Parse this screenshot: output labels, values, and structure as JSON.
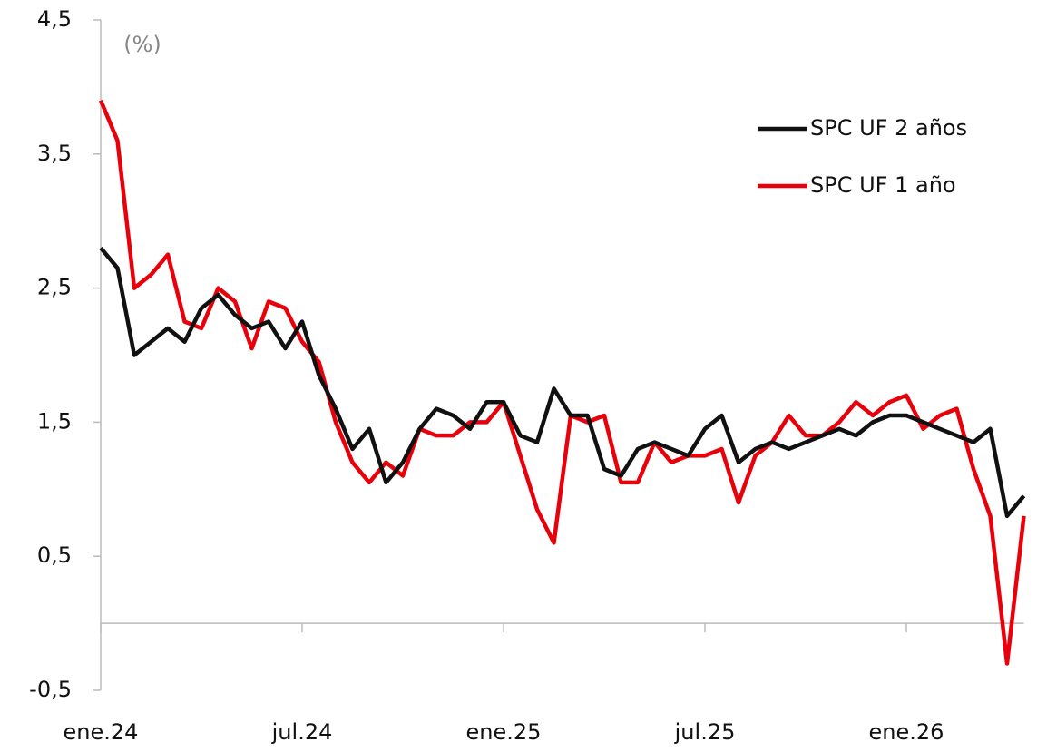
{
  "chart_data": {
    "type": "line",
    "annotation": "(%)",
    "categories": [
      "ene.24",
      null,
      null,
      null,
      null,
      null,
      null,
      null,
      null,
      null,
      null,
      null,
      "jul.24",
      null,
      null,
      null,
      null,
      null,
      null,
      null,
      null,
      null,
      null,
      null,
      "ene.25",
      null,
      null,
      null,
      null,
      null,
      null,
      null,
      null,
      null,
      null,
      null,
      "jul.25",
      null,
      null,
      null,
      null,
      null,
      null,
      null,
      null,
      null,
      null,
      null,
      "ene.26",
      null,
      null,
      null,
      null,
      null,
      null,
      null
    ],
    "series": [
      {
        "name": "SPC UF 2 años",
        "color": "#111111",
        "values": [
          2.8,
          2.65,
          2.0,
          2.1,
          2.2,
          2.1,
          2.35,
          2.45,
          2.3,
          2.2,
          2.25,
          2.05,
          2.25,
          1.85,
          1.6,
          1.3,
          1.45,
          1.05,
          1.2,
          1.45,
          1.6,
          1.55,
          1.45,
          1.65,
          1.65,
          1.4,
          1.35,
          1.75,
          1.55,
          1.55,
          1.15,
          1.1,
          1.3,
          1.35,
          1.3,
          1.25,
          1.45,
          1.55,
          1.2,
          1.3,
          1.35,
          1.3,
          1.35,
          1.4,
          1.45,
          1.4,
          1.5,
          1.55,
          1.55,
          1.5,
          1.45,
          1.4,
          1.35,
          1.45,
          0.8,
          0.95
        ]
      },
      {
        "name": "SPC UF 1 año",
        "color": "#e8000b",
        "values": [
          3.9,
          3.6,
          2.5,
          2.6,
          2.75,
          2.25,
          2.2,
          2.5,
          2.4,
          2.05,
          2.4,
          2.35,
          2.1,
          1.95,
          1.5,
          1.2,
          1.05,
          1.2,
          1.1,
          1.45,
          1.4,
          1.4,
          1.5,
          1.5,
          1.65,
          1.25,
          0.85,
          0.6,
          1.55,
          1.5,
          1.55,
          1.05,
          1.05,
          1.35,
          1.2,
          1.25,
          1.25,
          1.3,
          0.9,
          1.25,
          1.35,
          1.55,
          1.4,
          1.4,
          1.5,
          1.65,
          1.55,
          1.65,
          1.7,
          1.45,
          1.55,
          1.6,
          1.15,
          0.8,
          -0.3,
          0.8
        ]
      }
    ],
    "ylim": [
      -0.5,
      4.5
    ],
    "yticks": [
      {
        "value": -0.5,
        "label": "-0,5"
      },
      {
        "value": 0.5,
        "label": "0,5"
      },
      {
        "value": 1.5,
        "label": "1,5"
      },
      {
        "value": 2.5,
        "label": "2,5"
      },
      {
        "value": 3.5,
        "label": "3,5"
      },
      {
        "value": 4.5,
        "label": "4,5"
      }
    ],
    "legend": "upper right",
    "grid": false
  }
}
